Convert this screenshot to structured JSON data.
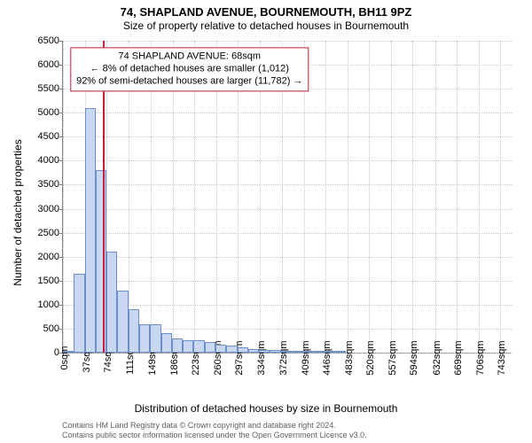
{
  "title": {
    "main": "74, SHAPLAND AVENUE, BOURNEMOUTH, BH11 9PZ",
    "sub": "Size of property relative to detached houses in Bournemouth",
    "main_fontsize": 13,
    "sub_fontsize": 12,
    "color": "#000000"
  },
  "ylabel": {
    "text": "Number of detached properties",
    "fontsize": 12
  },
  "xlabel": {
    "text": "Distribution of detached houses by size in Bournemouth",
    "fontsize": 12
  },
  "chart": {
    "type": "histogram",
    "background_color": "#ffffff",
    "grid_color": "#c8c8c8",
    "axis_color": "#808080",
    "xlim": [
      0,
      762
    ],
    "ylim": [
      0,
      6500
    ],
    "ytick_step": 500,
    "yticks": [
      0,
      500,
      1000,
      1500,
      2000,
      2500,
      3000,
      3500,
      4000,
      4500,
      5000,
      5500,
      6000,
      6500
    ],
    "xtick_step": 37,
    "xtick_suffix": "sqm",
    "xticks_values": [
      0,
      37,
      74,
      111,
      149,
      186,
      223,
      260,
      297,
      334,
      372,
      409,
      446,
      483,
      520,
      557,
      594,
      632,
      669,
      706,
      743
    ],
    "bar_color_fill": "#c9d8f0",
    "bar_color_stroke": "#6e8fc9",
    "bar_border_width": 1,
    "bin_width_sqm": 18.5,
    "n_bins": 40,
    "values": [
      30,
      1650,
      5100,
      3800,
      2100,
      1300,
      900,
      600,
      600,
      400,
      300,
      250,
      250,
      220,
      160,
      150,
      120,
      80,
      60,
      50,
      40,
      30,
      20,
      15,
      10,
      10,
      0,
      0,
      0,
      0,
      0,
      0,
      0,
      0,
      0,
      0,
      0,
      0,
      0,
      0
    ],
    "marker": {
      "x_sqm": 68,
      "color": "#c41e3a",
      "line_width": 2
    },
    "annotation_box": {
      "lines": [
        "74 SHAPLAND AVENUE: 68sqm",
        "← 8% of detached houses are smaller (1,012)",
        "92% of semi-detached houses are larger (11,782) →"
      ],
      "border_color": "#c41e3a",
      "bg_color": "#ffffff",
      "text_color": "#000000",
      "fontsize": 11,
      "x_sqm": 215,
      "y_value": 5900
    }
  },
  "credits": {
    "line1": "Contains HM Land Registry data © Crown copyright and database right 2024.",
    "line2": "Contains public sector information licensed under the Open Government Licence v3.0.",
    "color": "#606060",
    "fontsize": 9
  }
}
